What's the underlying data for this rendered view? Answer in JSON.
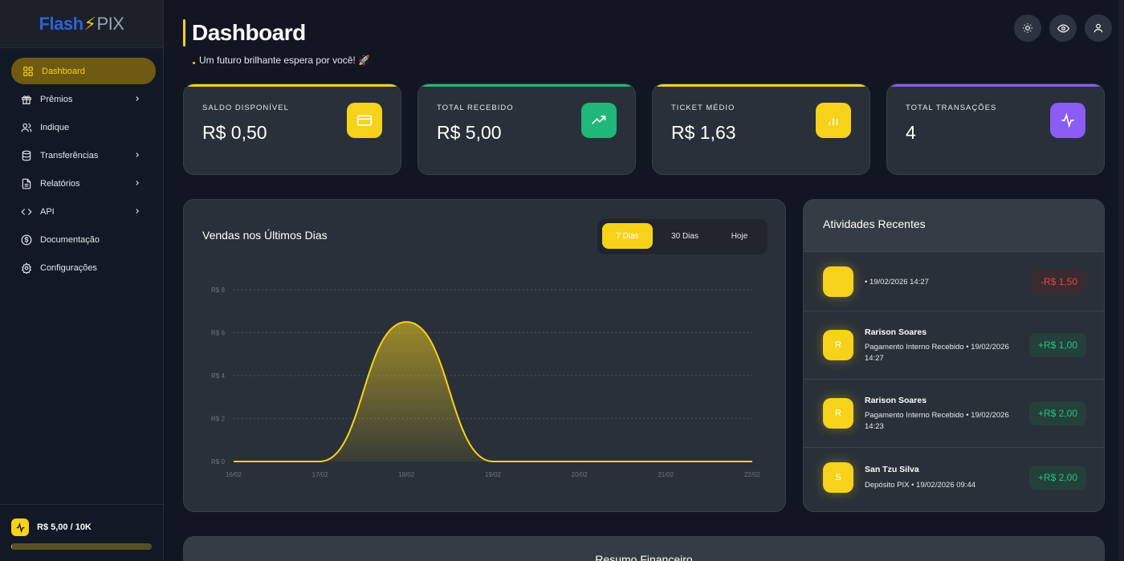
{
  "app": {
    "logo_part1": "Flash",
    "logo_part2": "PIX"
  },
  "sidebar": {
    "items": [
      {
        "label": "Dashboard",
        "icon": "grid-icon",
        "active": true
      },
      {
        "label": "Prêmios",
        "icon": "gift-icon",
        "has_submenu": true
      },
      {
        "label": "Indique",
        "icon": "users-icon"
      },
      {
        "label": "Transferências",
        "icon": "database-icon",
        "has_submenu": true
      },
      {
        "label": "Relatórios",
        "icon": "file-icon",
        "has_submenu": true
      },
      {
        "label": "API",
        "icon": "code-icon",
        "has_submenu": true
      },
      {
        "label": "Documentação",
        "icon": "dollar-circle-icon"
      },
      {
        "label": "Configurações",
        "icon": "gear-icon"
      }
    ],
    "limit": {
      "label": "R$ 5,00 / 10K",
      "progress": 0.0005
    }
  },
  "header": {
    "title": "Dashboard",
    "subtitle": "Um futuro brilhante espera por você! 🚀",
    "buttons": [
      "sun-icon",
      "eye-icon",
      "user-icon"
    ]
  },
  "stats": [
    {
      "label": "SALDO DISPONÍVEL",
      "value": "R$ 0,50",
      "icon": "card-icon",
      "color": "#f6d21b"
    },
    {
      "label": "TOTAL RECEBIDO",
      "value": "R$ 5,00",
      "icon": "trending-up-icon",
      "color": "#20b77a"
    },
    {
      "label": "TICKET MÉDIO",
      "value": "R$ 1,63",
      "icon": "bar-chart-icon",
      "color": "#f6d21b"
    },
    {
      "label": "TOTAL TRANSAÇÕES",
      "value": "4",
      "icon": "activity-icon",
      "color": "#8b5cf6"
    }
  ],
  "sales_chart": {
    "title": "Vendas nos Últimos Dias",
    "periods": [
      "7 Dias",
      "30 Dias",
      "Hoje"
    ],
    "selected_period": "7 Dias"
  },
  "chart_data": {
    "type": "area",
    "title": "Vendas nos Últimos Dias",
    "x": [
      "16/02",
      "17/02",
      "18/02",
      "19/02",
      "20/02",
      "21/02",
      "22/02"
    ],
    "values": [
      0,
      0,
      6.5,
      0,
      0,
      0,
      0
    ],
    "yticks": [
      "R$ 0",
      "R$ 2",
      "R$ 4",
      "R$ 6",
      "R$ 8"
    ],
    "ylim": [
      0,
      8
    ],
    "grid": true,
    "color": "#f6d21b"
  },
  "activities": {
    "title": "Atividades Recentes",
    "items": [
      {
        "initial": "",
        "name": "",
        "desc": "• 19/02/2026 14:27",
        "amount": "-R$ 1,50",
        "type": "neg"
      },
      {
        "initial": "R",
        "name": "Rarison Soares",
        "desc": "Pagamento Interno Recebido • 19/02/2026 14:27",
        "amount": "+R$ 1,00",
        "type": "pos"
      },
      {
        "initial": "R",
        "name": "Rarison Soares",
        "desc": "Pagamento Interno Recebido • 19/02/2026 14:23",
        "amount": "+R$ 2,00",
        "type": "pos"
      },
      {
        "initial": "S",
        "name": "San Tzu Silva",
        "desc": "Depósito PIX • 19/02/2026 09:44",
        "amount": "+R$ 2,00",
        "type": "pos"
      }
    ]
  },
  "summary": {
    "title": "Resumo Financeiro"
  }
}
